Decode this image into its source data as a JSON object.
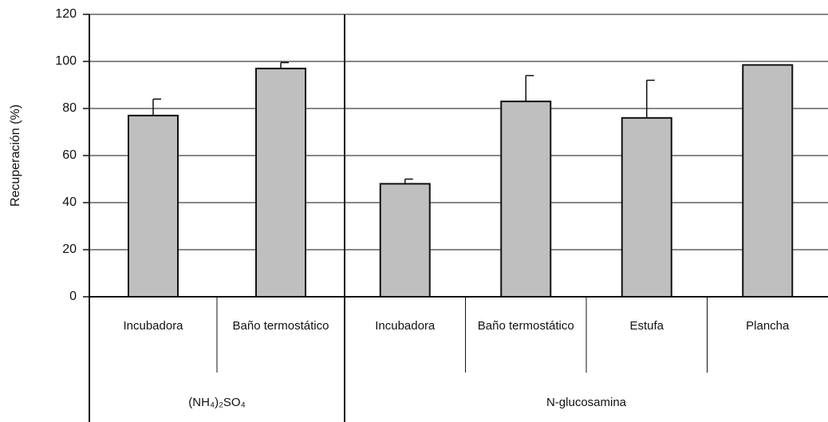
{
  "chart_data": {
    "type": "bar",
    "y_label": "Recuperación (%)",
    "color": "#bfbfbf",
    "ylim": [
      0,
      120
    ],
    "yticks": [
      0,
      20,
      40,
      60,
      80,
      100,
      120
    ],
    "grid": true,
    "groups": [
      {
        "label": "(NH₄)₂SO₄",
        "categories": [
          "Incubadora",
          "Baño termostático"
        ],
        "values": [
          77,
          97
        ],
        "errors": [
          7,
          2.5
        ]
      },
      {
        "label": "N-glucosamina",
        "categories": [
          "Incubadora",
          "Baño termostático",
          "Estufa",
          "Plancha"
        ],
        "values": [
          48,
          83,
          76,
          98.5
        ],
        "errors": [
          2,
          11,
          16,
          null
        ]
      }
    ]
  }
}
